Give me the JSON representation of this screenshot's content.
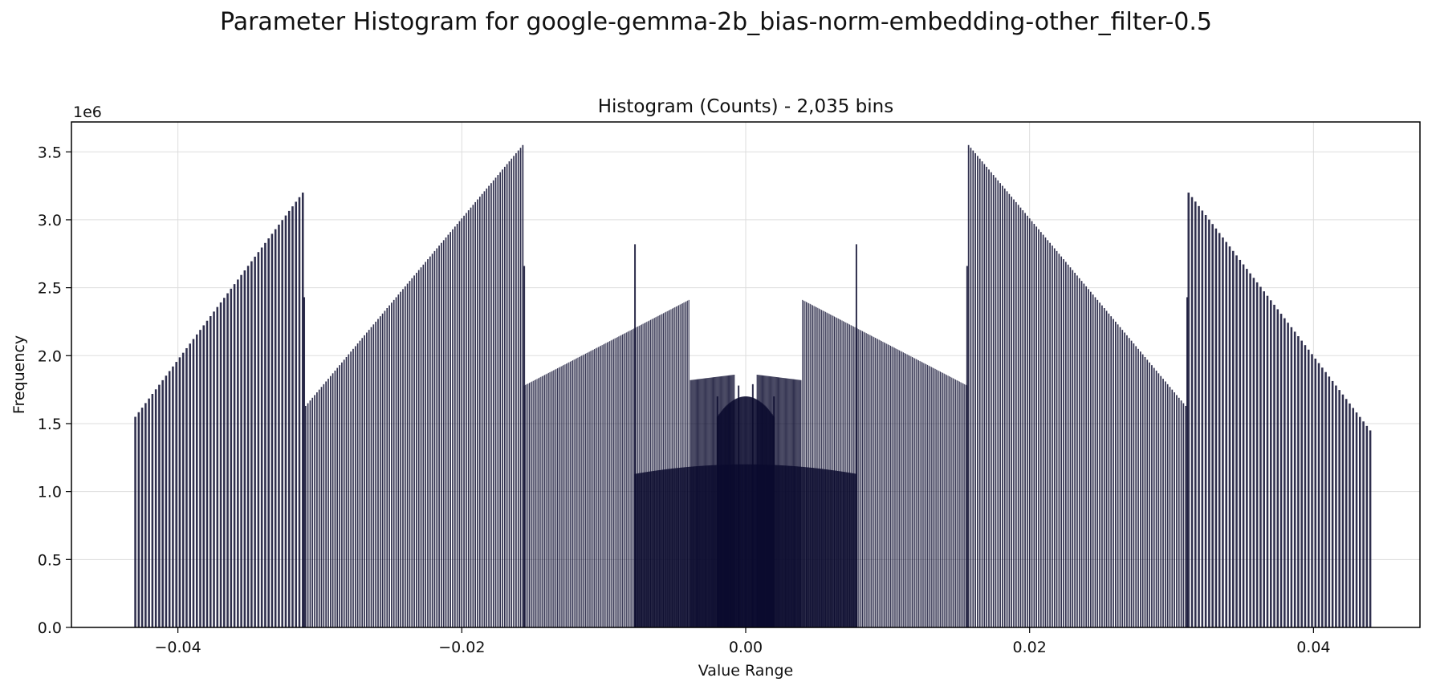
{
  "figure": {
    "suptitle": "Parameter Histogram for google-gemma-2b_bias-norm-embedding-other_filter-0.5"
  },
  "chart_data": {
    "type": "bar",
    "title": "Histogram (Counts) - 2,035 bins",
    "xlabel": "Value Range",
    "ylabel": "Frequency",
    "y_offset_label": "1e6",
    "xlim": [
      -0.0475,
      0.0475
    ],
    "ylim": [
      0,
      3.72
    ],
    "y_unit_multiplier": 1000000,
    "grid": true,
    "bar_color": "#0b0b2e",
    "x_ticks": [
      {
        "value": -0.04,
        "label": "−0.04"
      },
      {
        "value": -0.02,
        "label": "−0.02"
      },
      {
        "value": 0.0,
        "label": "0.00"
      },
      {
        "value": 0.02,
        "label": "0.02"
      },
      {
        "value": 0.04,
        "label": "0.04"
      }
    ],
    "y_ticks": [
      {
        "value": 0.0,
        "label": "0.0"
      },
      {
        "value": 0.5,
        "label": "0.5"
      },
      {
        "value": 1.0,
        "label": "1.0"
      },
      {
        "value": 1.5,
        "label": "1.5"
      },
      {
        "value": 2.0,
        "label": "2.0"
      },
      {
        "value": 2.5,
        "label": "2.5"
      },
      {
        "value": 3.0,
        "label": "3.0"
      },
      {
        "value": 3.5,
        "label": "3.5"
      }
    ],
    "bin_count": 2035,
    "segments": [
      {
        "x_start": -0.043,
        "x_end": -0.0312,
        "y_start": 1.55,
        "y_end": 3.2,
        "step": 0.00024
      },
      {
        "x_start": -0.031,
        "x_end": -0.0157,
        "y_start": 1.63,
        "y_end": 3.55,
        "step": 0.00016
      },
      {
        "x_start": -0.0156,
        "x_end": -0.004,
        "y_start": 1.78,
        "y_end": 2.41,
        "step": 9e-05
      },
      {
        "x_start": -0.0039,
        "x_end": -0.0008,
        "y_start": 1.82,
        "y_end": 1.86,
        "step": 6e-05
      },
      {
        "x_start": -0.0078,
        "x_end": 0.0078,
        "y_start": 1.13,
        "y_end": 1.2,
        "step": 5e-05,
        "shape": "dome",
        "y_peak": 1.2
      },
      {
        "x_start": 0.0008,
        "x_end": 0.0039,
        "y_start": 1.86,
        "y_end": 1.82,
        "step": 6e-05
      },
      {
        "x_start": 0.004,
        "x_end": 0.0156,
        "y_start": 2.41,
        "y_end": 1.78,
        "step": 9e-05
      },
      {
        "x_start": 0.0157,
        "x_end": 0.031,
        "y_start": 3.55,
        "y_end": 1.63,
        "step": 0.00016
      },
      {
        "x_start": 0.0312,
        "x_end": 0.044,
        "y_start": 3.2,
        "y_end": 1.45,
        "step": 0.00024
      }
    ],
    "spikes": [
      {
        "x": -0.0078,
        "y": 2.82
      },
      {
        "x": 0.0078,
        "y": 2.82
      },
      {
        "x": -0.0156,
        "y": 2.66
      },
      {
        "x": 0.0156,
        "y": 2.66
      },
      {
        "x": -0.0311,
        "y": 2.43
      },
      {
        "x": 0.0311,
        "y": 2.43
      },
      {
        "x": -0.002,
        "y": 1.7
      },
      {
        "x": 0.002,
        "y": 1.7
      },
      {
        "x": -0.0005,
        "y": 1.78
      },
      {
        "x": 0.0005,
        "y": 1.79
      }
    ],
    "center_block": {
      "x_start": -0.002,
      "x_end": 0.002,
      "y": 1.55,
      "y_peak": 1.7
    }
  }
}
